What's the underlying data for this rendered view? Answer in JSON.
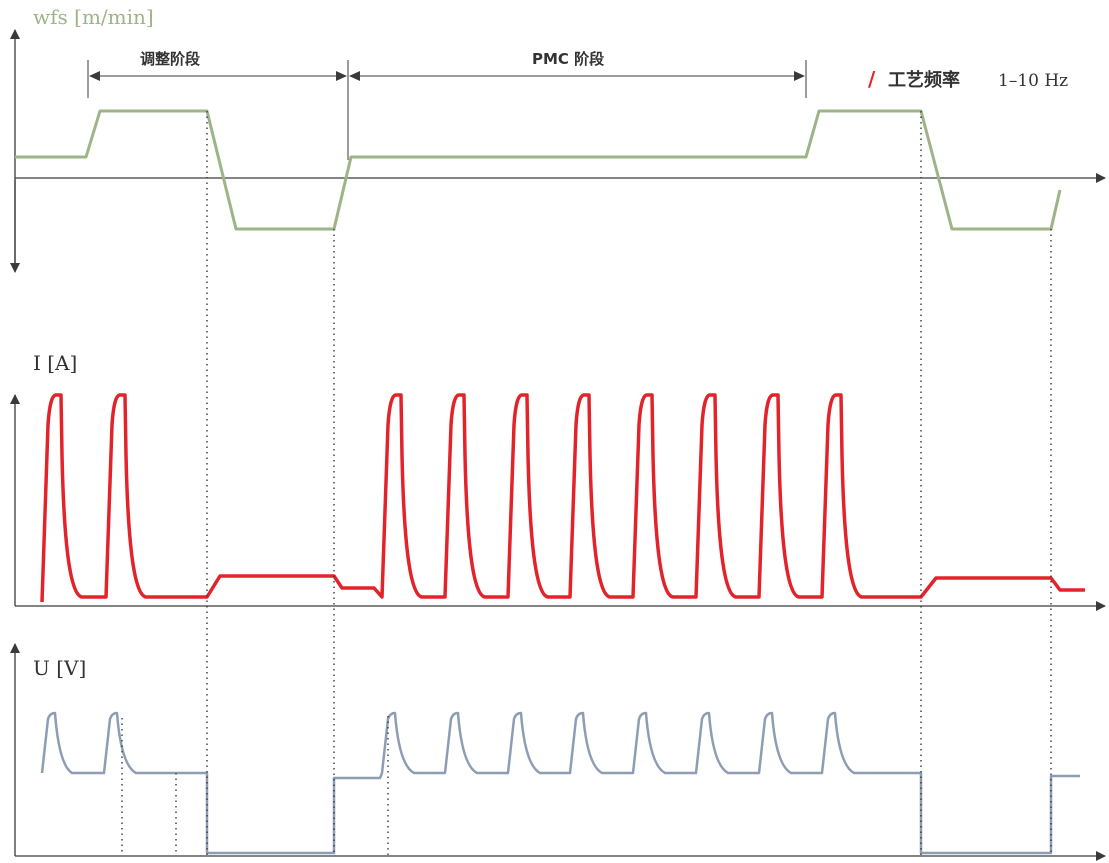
{
  "colors": {
    "wfs": "#9cb487",
    "current": "#e3232a",
    "voltage": "#8c9db4",
    "axis": "#3a3a3a",
    "text": "#333333",
    "accent": "#e3232a"
  },
  "labels": {
    "wfs_axis": "wfs [m/min]",
    "current_axis": "I [A]",
    "voltage_axis": "U [V]",
    "phase_adjust": "调整阶段",
    "phase_pmc": "PMC 阶段",
    "freq_slash": "/",
    "freq_label": "工艺频率",
    "freq_value": "1–10 Hz"
  }
}
